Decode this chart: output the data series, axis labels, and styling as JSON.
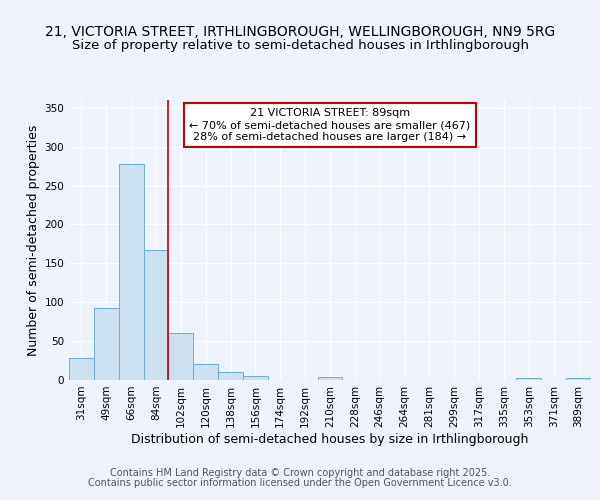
{
  "title_line1": "21, VICTORIA STREET, IRTHLINGBOROUGH, WELLINGBOROUGH, NN9 5RG",
  "title_line2": "Size of property relative to semi-detached houses in Irthlingborough",
  "xlabel": "Distribution of semi-detached houses by size in Irthlingborough",
  "ylabel": "Number of semi-detached properties",
  "categories": [
    "31sqm",
    "49sqm",
    "66sqm",
    "84sqm",
    "102sqm",
    "120sqm",
    "138sqm",
    "156sqm",
    "174sqm",
    "192sqm",
    "210sqm",
    "228sqm",
    "246sqm",
    "264sqm",
    "281sqm",
    "299sqm",
    "317sqm",
    "335sqm",
    "353sqm",
    "371sqm",
    "389sqm"
  ],
  "values": [
    28,
    92,
    278,
    167,
    60,
    20,
    10,
    5,
    0,
    0,
    4,
    0,
    0,
    0,
    0,
    0,
    0,
    0,
    2,
    0,
    2
  ],
  "bar_color": "#cde0f0",
  "bar_edge_color": "#6aaed6",
  "red_line_x": 3.5,
  "annotation_title": "21 VICTORIA STREET: 89sqm",
  "annotation_line1": "← 70% of semi-detached houses are smaller (467)",
  "annotation_line2": "28% of semi-detached houses are larger (184) →",
  "annotation_box_color": "#ffffff",
  "annotation_box_edge": "#cc0000",
  "ylim": [
    0,
    360
  ],
  "yticks": [
    0,
    50,
    100,
    150,
    200,
    250,
    300,
    350
  ],
  "footer_line1": "Contains HM Land Registry data © Crown copyright and database right 2025.",
  "footer_line2": "Contains public sector information licensed under the Open Government Licence v3.0.",
  "bg_color": "#eef3fb",
  "grid_color": "#ffffff",
  "title_fontsize": 10,
  "subtitle_fontsize": 9.5,
  "axis_label_fontsize": 9,
  "tick_fontsize": 7.5,
  "annotation_fontsize": 8,
  "footer_fontsize": 7
}
